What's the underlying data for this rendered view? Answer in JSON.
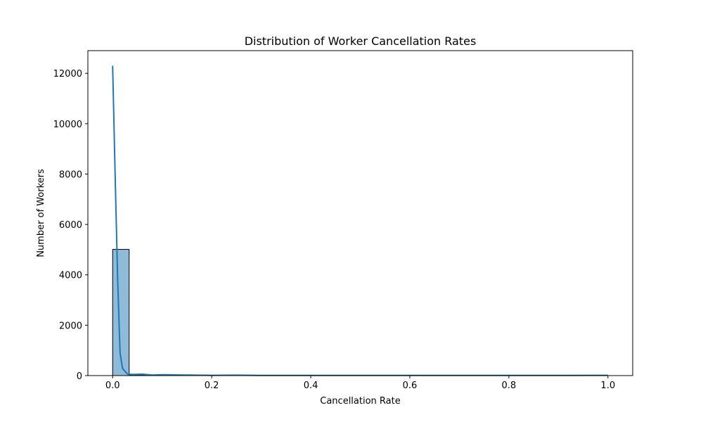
{
  "chart_data": {
    "type": "bar",
    "title": "Distribution of Worker Cancellation Rates",
    "xlabel": "Cancellation Rate",
    "ylabel": "Number of Workers",
    "xlim": [
      -0.05,
      1.05
    ],
    "ylim": [
      0,
      12900
    ],
    "xticks": [
      0.0,
      0.2,
      0.4,
      0.6,
      0.8,
      1.0
    ],
    "xtick_labels": [
      "0.0",
      "0.2",
      "0.4",
      "0.6",
      "0.8",
      "1.0"
    ],
    "yticks": [
      0,
      2000,
      4000,
      6000,
      8000,
      10000,
      12000
    ],
    "ytick_labels": [
      "0",
      "2000",
      "4000",
      "6000",
      "8000",
      "10000",
      "12000"
    ],
    "bins": 30,
    "bin_range": [
      0.0,
      1.0
    ],
    "counts": [
      5010,
      25,
      30,
      10,
      8,
      6,
      5,
      4,
      3,
      3,
      2,
      2,
      2,
      2,
      2,
      2,
      2,
      2,
      2,
      2,
      2,
      2,
      2,
      2,
      2,
      2,
      2,
      2,
      2,
      3
    ],
    "kde": {
      "name": "",
      "x": [
        0.0,
        0.005,
        0.01,
        0.015,
        0.02,
        0.03,
        0.04,
        0.06,
        0.08,
        0.1,
        0.15,
        0.2,
        0.25,
        0.3,
        0.4,
        0.5,
        0.6,
        0.7,
        0.8,
        0.9,
        1.0
      ],
      "y": [
        12300,
        8000,
        3900,
        900,
        280,
        60,
        45,
        55,
        20,
        35,
        20,
        12,
        18,
        8,
        8,
        8,
        8,
        8,
        8,
        8,
        10
      ]
    },
    "colors": {
      "bar_fill": "#8fbbd9",
      "bar_edge": "#000000",
      "kde_line": "#1f77b4"
    },
    "grid": false,
    "legend": "none"
  }
}
